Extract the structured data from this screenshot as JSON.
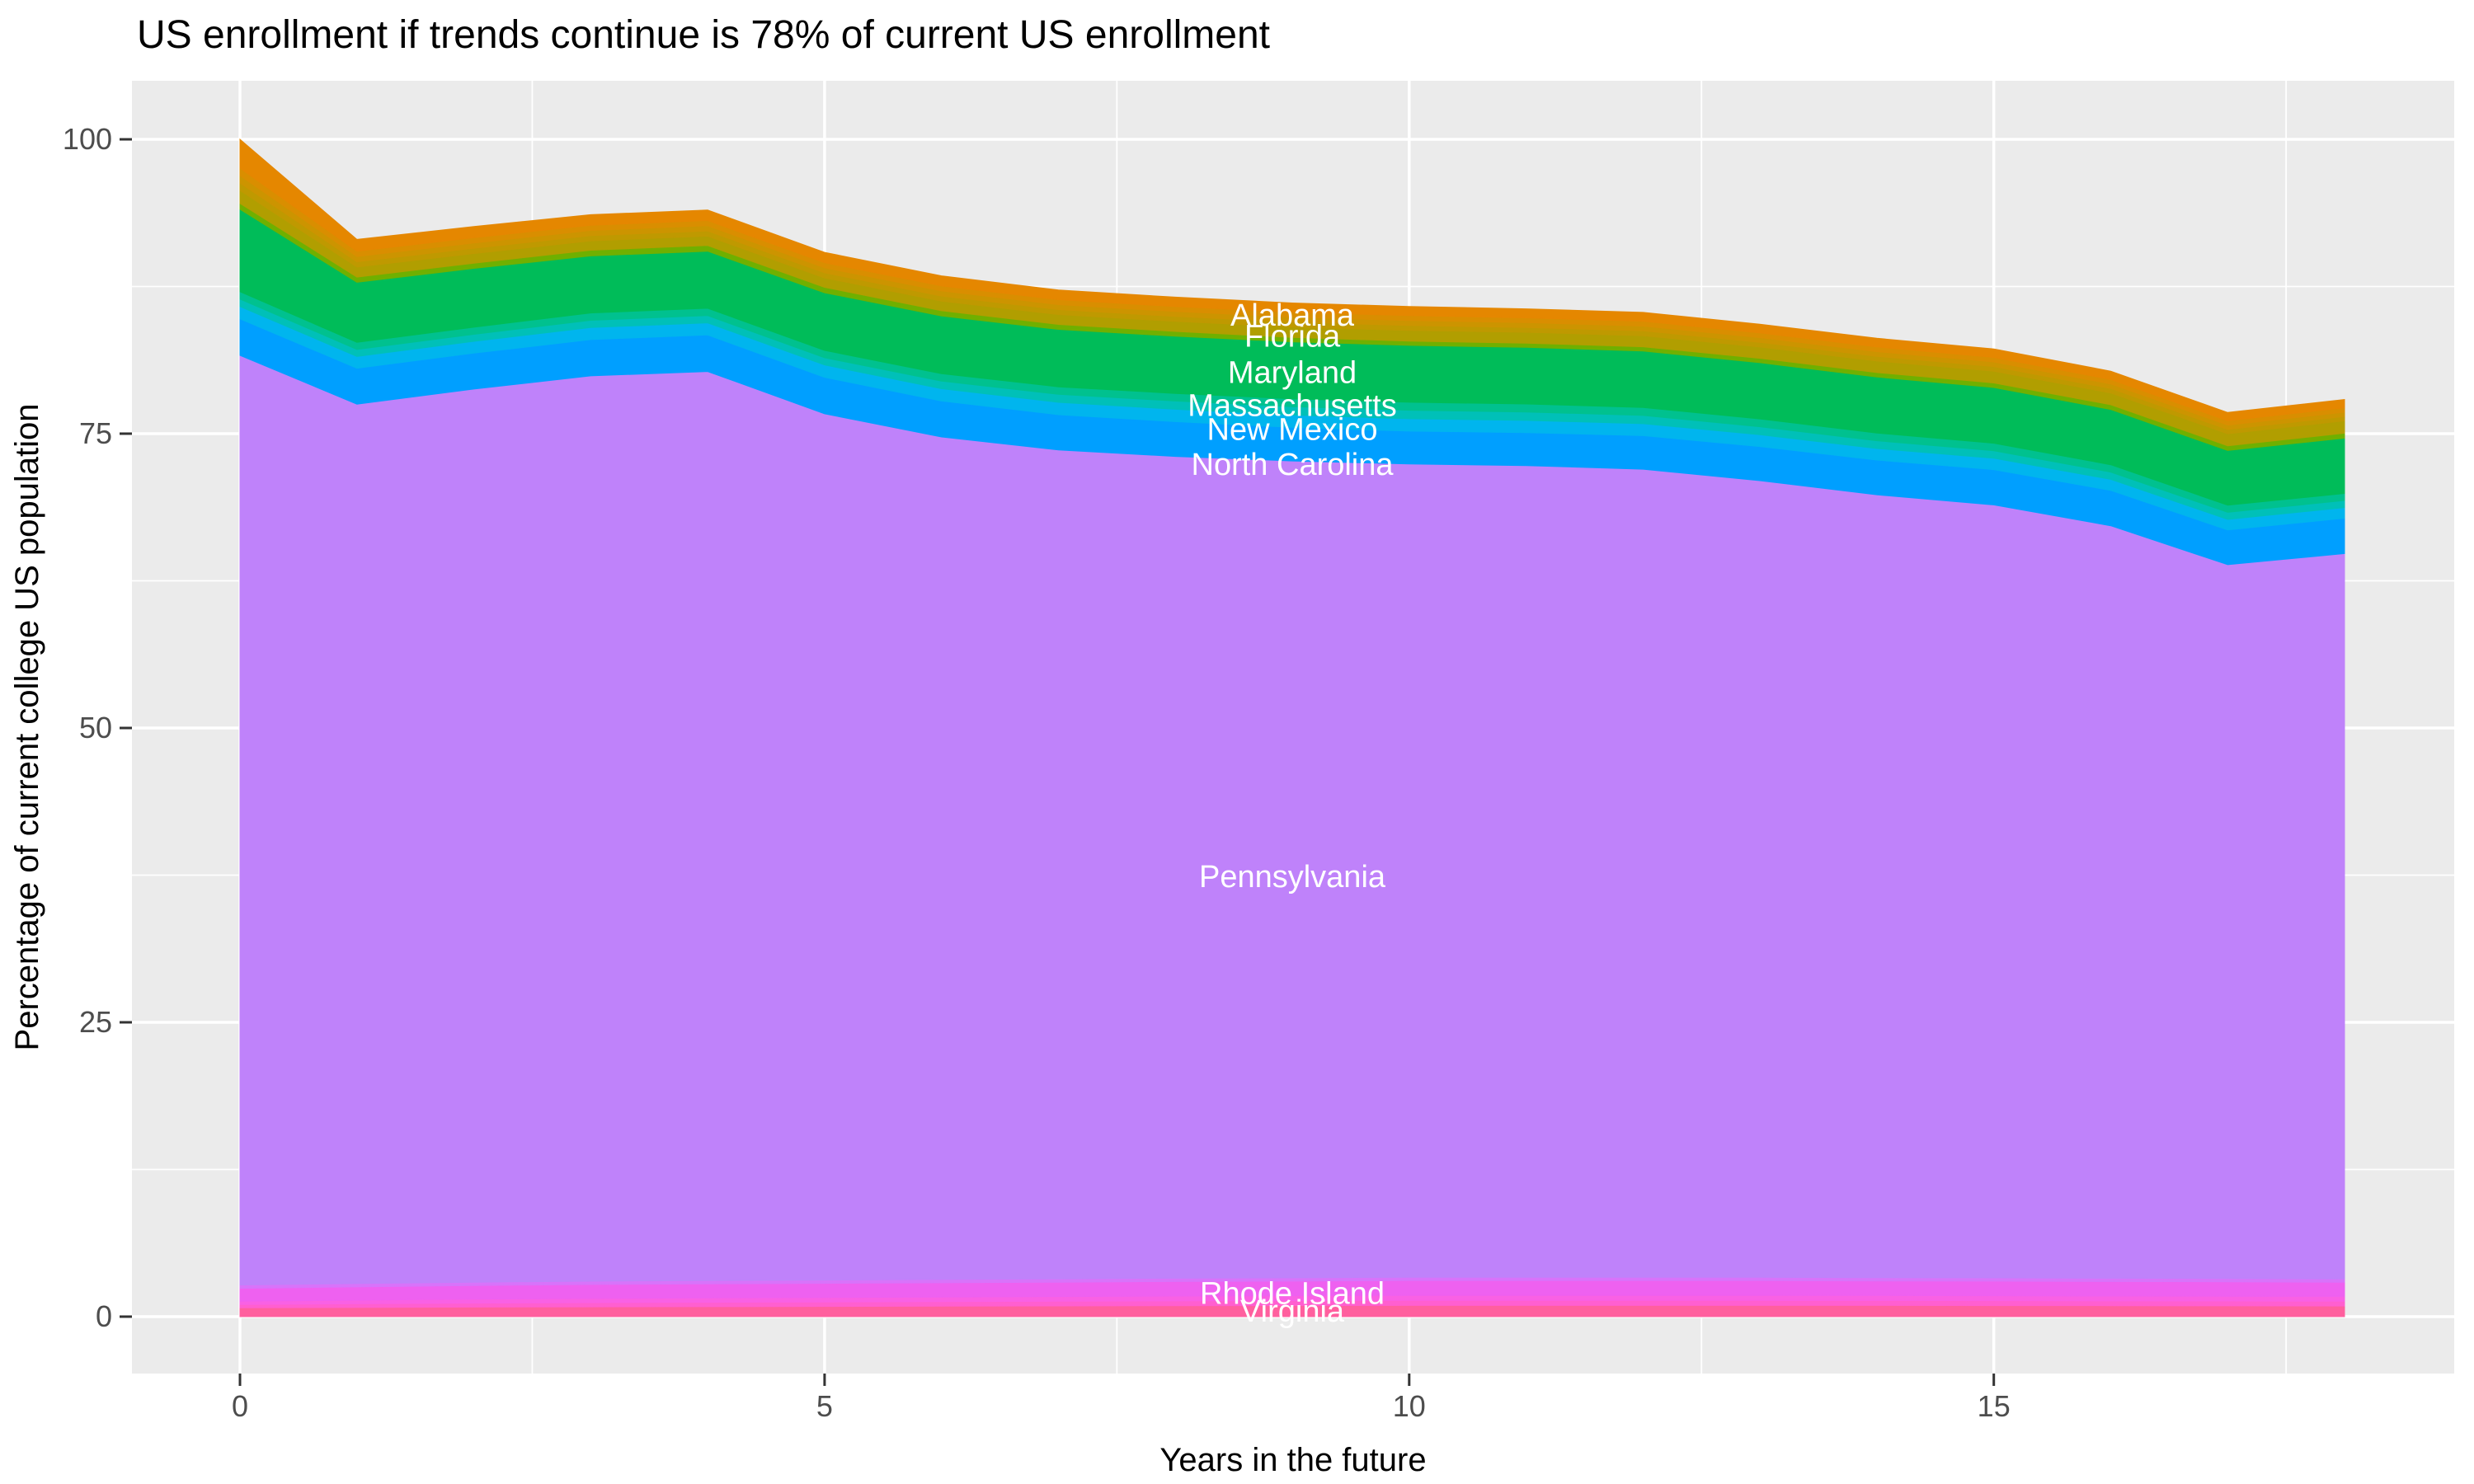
{
  "title": "US enrollment if trends continue is 78% of current US enrollment",
  "x_axis": {
    "title": "Years in the future",
    "tick_labels": [
      "0",
      "5",
      "10",
      "15"
    ],
    "ticks": [
      0,
      5,
      10,
      15
    ],
    "minor_ticks": [
      2.5,
      7.5,
      12.5,
      17.5
    ]
  },
  "y_axis": {
    "title": "Percentage of current college US population",
    "tick_labels": [
      "0",
      "25",
      "50",
      "75",
      "100"
    ],
    "ticks": [
      0,
      25,
      50,
      75,
      100
    ],
    "minor_ticks": [
      12.5,
      37.5,
      62.5,
      87.5
    ]
  },
  "colors": {
    "panel_background": "#EBEBEB",
    "gridline": "#FFFFFF",
    "tick_mark": "#333333",
    "tick_text": "#4D4D4D",
    "title_text": "#000000",
    "area_label_text": "#FFFFFF"
  },
  "chart_data": {
    "type": "area",
    "stacked": true,
    "title": "US enrollment if trends continue is 78% of current US enrollment",
    "xlabel": "Years in the future",
    "ylabel": "Percentage of current college US population",
    "xlim": [
      -0.9,
      18.9
    ],
    "ylim": [
      -4.8,
      105.2
    ],
    "grid": true,
    "legend_position": "none",
    "x": [
      0,
      1,
      2,
      3,
      4,
      5,
      6,
      7,
      8,
      9,
      10,
      11,
      12,
      13,
      14,
      15,
      16,
      17,
      18
    ],
    "series": [
      {
        "name": "Virginia",
        "labeled": true,
        "color": "#FF5F9E",
        "values": [
          0.75,
          0.78,
          0.81,
          0.83,
          0.85,
          0.87,
          0.89,
          0.91,
          0.93,
          0.94,
          0.95,
          0.95,
          0.95,
          0.95,
          0.95,
          0.94,
          0.93,
          0.92,
          0.9
        ]
      },
      {
        "name": "unlabeled-strip",
        "labeled": false,
        "color": "#FF5FD0",
        "values": [
          0.28,
          0.31,
          0.34,
          0.36,
          0.37,
          0.38,
          0.39,
          0.4,
          0.41,
          0.42,
          0.43,
          0.43,
          0.43,
          0.43,
          0.42,
          0.42,
          0.41,
          0.41,
          0.41
        ]
      },
      {
        "name": "unlabeled-strip",
        "labeled": false,
        "color": "#F961E4",
        "values": [
          0.28,
          0.31,
          0.34,
          0.36,
          0.37,
          0.38,
          0.39,
          0.4,
          0.41,
          0.42,
          0.43,
          0.43,
          0.43,
          0.43,
          0.42,
          0.42,
          0.41,
          0.41,
          0.41
        ]
      },
      {
        "name": "Rhode Island",
        "labeled": true,
        "color": "#EE61F0",
        "values": [
          1.1,
          1.13,
          1.16,
          1.18,
          1.19,
          1.2,
          1.21,
          1.22,
          1.23,
          1.24,
          1.25,
          1.25,
          1.25,
          1.25,
          1.24,
          1.24,
          1.23,
          1.22,
          1.2
        ]
      },
      {
        "name": "unlabeled-strip",
        "labeled": false,
        "color": "#D873FA",
        "values": [
          0.28,
          0.28,
          0.28,
          0.28,
          0.28,
          0.28,
          0.28,
          0.28,
          0.28,
          0.28,
          0.28,
          0.28,
          0.28,
          0.28,
          0.28,
          0.28,
          0.28,
          0.28,
          0.28
        ]
      },
      {
        "name": "Pennsylvania",
        "labeled": true,
        "color": "#BF82FA",
        "values": [
          78.96,
          74.7,
          75.86,
          76.9,
          77.22,
          73.58,
          71.56,
          70.4,
          69.81,
          69.38,
          69.08,
          68.95,
          68.64,
          67.67,
          66.5,
          65.65,
          63.92,
          60.63,
          61.62
        ]
      },
      {
        "name": "North Carolina",
        "labeled": true,
        "color": "#009FFF",
        "values": [
          3.1,
          3.05,
          3.05,
          3.08,
          3.1,
          3.1,
          3.05,
          3.0,
          2.95,
          2.85,
          2.8,
          2.8,
          2.85,
          2.9,
          2.95,
          3.0,
          3.0,
          2.95,
          3.0
        ]
      },
      {
        "name": "New Mexico",
        "labeled": true,
        "color": "#00B5EE",
        "values": [
          1.05,
          1.0,
          1.0,
          1.02,
          1.03,
          1.04,
          1.05,
          1.05,
          1.05,
          1.05,
          1.05,
          1.04,
          1.02,
          1.0,
          0.98,
          0.96,
          0.94,
          0.9,
          0.9
        ]
      },
      {
        "name": "Massachusetts",
        "labeled": true,
        "color": "#00C0B8",
        "values": [
          0.63,
          0.6,
          0.6,
          0.62,
          0.62,
          0.62,
          0.65,
          0.68,
          0.7,
          0.72,
          0.72,
          0.71,
          0.7,
          0.68,
          0.66,
          0.64,
          0.62,
          0.6,
          0.6
        ]
      },
      {
        "name": "unlabeled-strip",
        "labeled": false,
        "color": "#00C18F",
        "values": [
          0.63,
          0.6,
          0.6,
          0.62,
          0.62,
          0.62,
          0.63,
          0.64,
          0.65,
          0.66,
          0.68,
          0.68,
          0.67,
          0.66,
          0.65,
          0.64,
          0.62,
          0.6,
          0.6
        ]
      },
      {
        "name": "Maryland",
        "labeled": true,
        "color": "#00BC59",
        "values": [
          7.0,
          5.1,
          5.0,
          4.85,
          4.85,
          4.9,
          4.9,
          4.88,
          4.86,
          4.84,
          4.83,
          4.81,
          4.8,
          4.78,
          4.76,
          4.73,
          4.7,
          4.65,
          4.7
        ]
      },
      {
        "name": "unlabeled-strip",
        "labeled": false,
        "color": "#6FB000",
        "values": [
          0.5,
          0.44,
          0.44,
          0.48,
          0.48,
          0.46,
          0.44,
          0.42,
          0.4,
          0.38,
          0.36,
          0.36,
          0.36,
          0.37,
          0.38,
          0.39,
          0.4,
          0.4,
          0.42
        ]
      },
      {
        "name": "Florida",
        "labeled": true,
        "color": "#B19E00",
        "values": [
          1.1,
          0.85,
          0.82,
          0.8,
          0.8,
          0.8,
          0.82,
          0.84,
          0.86,
          0.88,
          0.91,
          0.92,
          0.94,
          0.96,
          0.98,
          1.0,
          1.0,
          1.02,
          1.05
        ]
      },
      {
        "name": "unlabeled-strip",
        "labeled": false,
        "color": "#BF9900",
        "values": [
          0.63,
          0.45,
          0.45,
          0.44,
          0.44,
          0.43,
          0.43,
          0.42,
          0.42,
          0.42,
          0.42,
          0.41,
          0.41,
          0.4,
          0.4,
          0.39,
          0.38,
          0.37,
          0.37
        ]
      },
      {
        "name": "unlabeled-strip",
        "labeled": false,
        "color": "#CC9400",
        "values": [
          0.63,
          0.45,
          0.45,
          0.44,
          0.44,
          0.43,
          0.43,
          0.42,
          0.42,
          0.42,
          0.42,
          0.41,
          0.41,
          0.4,
          0.4,
          0.39,
          0.38,
          0.37,
          0.37
        ]
      },
      {
        "name": "unlabeled-strip",
        "labeled": false,
        "color": "#D98E00",
        "values": [
          0.63,
          0.45,
          0.45,
          0.44,
          0.44,
          0.43,
          0.43,
          0.42,
          0.42,
          0.42,
          0.42,
          0.41,
          0.41,
          0.4,
          0.4,
          0.39,
          0.38,
          0.37,
          0.37
        ]
      },
      {
        "name": "Alabama",
        "labeled": true,
        "color": "#E58700",
        "values": [
          2.45,
          1.0,
          0.95,
          0.9,
          0.9,
          0.88,
          0.85,
          0.82,
          0.8,
          0.78,
          0.77,
          0.76,
          0.75,
          0.74,
          0.73,
          0.72,
          0.71,
          0.7,
          0.7
        ]
      }
    ],
    "area_labels": [
      {
        "text": "Alabama",
        "x": 9.0,
        "y": 85.1
      },
      {
        "text": "Florida",
        "x": 9.0,
        "y": 83.3
      },
      {
        "text": "Maryland",
        "x": 9.0,
        "y": 80.2
      },
      {
        "text": "Massachusetts",
        "x": 9.0,
        "y": 77.4
      },
      {
        "text": "New Mexico",
        "x": 9.0,
        "y": 75.4
      },
      {
        "text": "North Carolina",
        "x": 9.0,
        "y": 72.4
      },
      {
        "text": "Pennsylvania",
        "x": 9.0,
        "y": 37.4
      },
      {
        "text": "Rhode Island",
        "x": 9.0,
        "y": 2.0
      },
      {
        "text": "Virginia",
        "x": 9.0,
        "y": 0.5
      }
    ]
  }
}
